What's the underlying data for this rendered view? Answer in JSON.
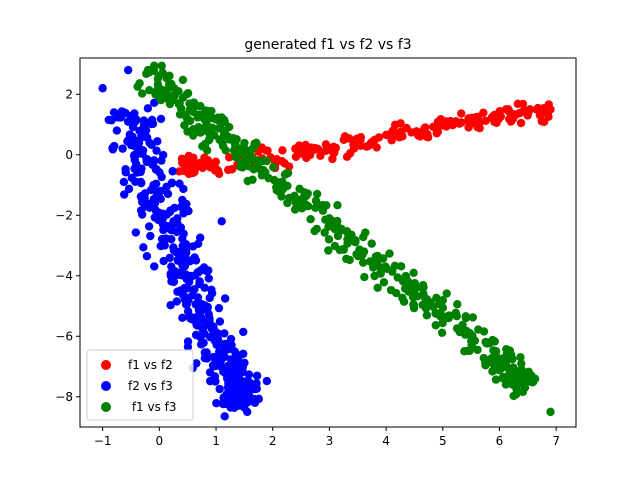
{
  "chart_data": {
    "type": "scatter",
    "title": "generated f1 vs f2 vs f3",
    "xlabel": "",
    "ylabel": "",
    "xlim": [
      -1.4,
      7.35
    ],
    "ylim": [
      -9.0,
      3.2
    ],
    "xticks": [
      -1,
      0,
      1,
      2,
      3,
      4,
      5,
      6,
      7
    ],
    "yticks": [
      2,
      0,
      -2,
      -4,
      -6,
      -8
    ],
    "grid": false,
    "legend_position": "lower-left",
    "series": [
      {
        "name": "f1 vs f2",
        "color": "#ff0000",
        "kind": "band",
        "points": [
          [
            0.4,
            -0.4
          ],
          [
            1.0,
            -0.3
          ],
          [
            2.0,
            -0.1
          ],
          [
            3.0,
            0.2
          ],
          [
            4.0,
            0.6
          ],
          [
            5.0,
            0.9
          ],
          [
            6.0,
            1.2
          ],
          [
            6.9,
            1.5
          ]
        ],
        "spread": 0.35,
        "count": 220,
        "extremes": [
          [
            0.35,
            -0.55
          ],
          [
            6.9,
            1.5
          ],
          [
            6.45,
            1.45
          ],
          [
            0.6,
            -0.1
          ]
        ]
      },
      {
        "name": "f2 vs f3",
        "color": "#0000ff",
        "kind": "band",
        "points": [
          [
            -0.55,
            1.5
          ],
          [
            -0.3,
            0.0
          ],
          [
            0.0,
            -1.5
          ],
          [
            0.3,
            -3.0
          ],
          [
            0.6,
            -4.5
          ],
          [
            0.9,
            -6.0
          ],
          [
            1.2,
            -7.2
          ],
          [
            1.5,
            -8.4
          ]
        ],
        "spread": 0.9,
        "count": 420,
        "extremes": [
          [
            -1.0,
            2.2
          ],
          [
            -0.55,
            2.8
          ],
          [
            -0.8,
            1.4
          ],
          [
            -0.75,
            0.8
          ],
          [
            1.55,
            -8.5
          ],
          [
            1.5,
            -7.5
          ],
          [
            1.1,
            -2.2
          ],
          [
            1.3,
            -7.0
          ]
        ]
      },
      {
        "name": " f1 vs f3",
        "color": "#008000",
        "kind": "band",
        "points": [
          [
            -0.2,
            2.8
          ],
          [
            0.5,
            1.5
          ],
          [
            1.0,
            0.7
          ],
          [
            2.0,
            -0.7
          ],
          [
            3.0,
            -2.3
          ],
          [
            4.0,
            -3.9
          ],
          [
            5.0,
            -5.3
          ],
          [
            6.0,
            -6.8
          ],
          [
            6.5,
            -7.7
          ]
        ],
        "spread": 0.6,
        "count": 420,
        "extremes": [
          [
            -0.2,
            2.8
          ],
          [
            6.9,
            -8.5
          ],
          [
            6.45,
            -7.7
          ],
          [
            6.25,
            -7.6
          ],
          [
            0.0,
            2.2
          ],
          [
            5.8,
            -6.8
          ]
        ]
      }
    ]
  }
}
